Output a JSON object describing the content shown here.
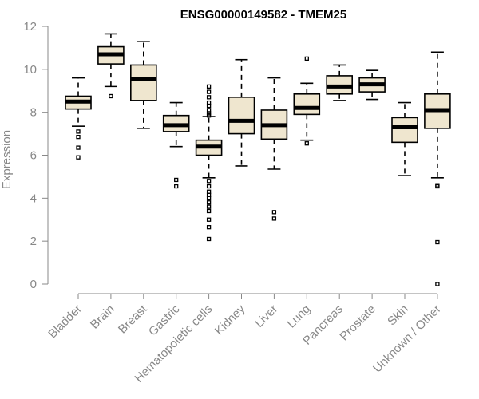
{
  "chart_data": {
    "type": "boxplot",
    "title": "ENSG00000149582 - TMEM25",
    "ylabel": "Expression",
    "xlabel": "",
    "ylim": [
      0,
      12
    ],
    "yticks": [
      0,
      2,
      4,
      6,
      8,
      10,
      12
    ],
    "grid": false,
    "colors": {
      "box_fill": "#efe6cf",
      "box_stroke": "#000000",
      "axis": "#888888"
    },
    "categories": [
      "Bladder",
      "Brain",
      "Breast",
      "Gastric",
      "Hematopoietic cells",
      "Kidney",
      "Liver",
      "Lung",
      "Pancreas",
      "Prostate",
      "Skin",
      "Unknown / Other"
    ],
    "boxes": [
      {
        "category": "Bladder",
        "whisker_low": 7.35,
        "q1": 8.15,
        "median": 8.5,
        "q3": 8.75,
        "whisker_high": 9.6,
        "outliers": [
          7.1,
          6.85,
          6.35,
          5.9
        ]
      },
      {
        "category": "Brain",
        "whisker_low": 9.2,
        "q1": 10.25,
        "median": 10.7,
        "q3": 11.05,
        "whisker_high": 11.65,
        "outliers": [
          8.75
        ]
      },
      {
        "category": "Breast",
        "whisker_low": 7.25,
        "q1": 8.55,
        "median": 9.55,
        "q3": 10.2,
        "whisker_high": 11.3,
        "outliers": []
      },
      {
        "category": "Gastric",
        "whisker_low": 6.4,
        "q1": 7.1,
        "median": 7.4,
        "q3": 7.85,
        "whisker_high": 8.45,
        "outliers": [
          4.85,
          4.55
        ]
      },
      {
        "category": "Hematopoietic cells",
        "whisker_low": 4.95,
        "q1": 6.0,
        "median": 6.4,
        "q3": 6.7,
        "whisker_high": 7.8,
        "outliers": [
          9.2,
          8.95,
          8.7,
          8.45,
          8.3,
          8.1,
          7.95,
          7.85,
          4.8,
          4.55,
          4.3,
          4.15,
          4.0,
          3.8,
          3.6,
          3.4,
          3.0,
          2.65,
          2.1
        ]
      },
      {
        "category": "Kidney",
        "whisker_low": 5.5,
        "q1": 7.0,
        "median": 7.6,
        "q3": 8.7,
        "whisker_high": 10.45,
        "outliers": []
      },
      {
        "category": "Liver",
        "whisker_low": 5.35,
        "q1": 6.75,
        "median": 7.4,
        "q3": 8.1,
        "whisker_high": 9.6,
        "outliers": [
          3.35,
          3.05
        ]
      },
      {
        "category": "Lung",
        "whisker_low": 6.7,
        "q1": 7.9,
        "median": 8.2,
        "q3": 8.85,
        "whisker_high": 9.35,
        "outliers": [
          10.5,
          6.55
        ]
      },
      {
        "category": "Pancreas",
        "whisker_low": 8.55,
        "q1": 8.85,
        "median": 9.2,
        "q3": 9.7,
        "whisker_high": 10.2,
        "outliers": []
      },
      {
        "category": "Prostate",
        "whisker_low": 8.6,
        "q1": 8.95,
        "median": 9.3,
        "q3": 9.6,
        "whisker_high": 9.95,
        "outliers": []
      },
      {
        "category": "Skin",
        "whisker_low": 5.05,
        "q1": 6.6,
        "median": 7.3,
        "q3": 7.75,
        "whisker_high": 8.45,
        "outliers": []
      },
      {
        "category": "Unknown / Other",
        "whisker_low": 4.95,
        "q1": 7.25,
        "median": 8.1,
        "q3": 8.85,
        "whisker_high": 10.8,
        "outliers": [
          4.6,
          4.55,
          1.95,
          0.0
        ]
      }
    ]
  }
}
